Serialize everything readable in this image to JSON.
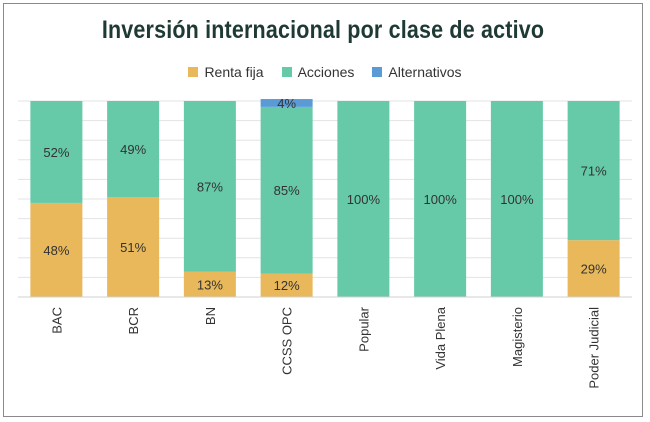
{
  "chart_data": {
    "type": "bar",
    "stacked": true,
    "title": "Inversión internacional por clase de activo",
    "categories": [
      "BAC",
      "BCR",
      "BN",
      "CCSS OPC",
      "Popular",
      "Vida Plena",
      "Magisterio",
      "Poder Judicial"
    ],
    "series": [
      {
        "name": "Renta fija",
        "color": "#e9b85a",
        "values": [
          48,
          51,
          13,
          12,
          0,
          0,
          0,
          29
        ]
      },
      {
        "name": "Acciones",
        "color": "#66c9a8",
        "values": [
          52,
          49,
          87,
          85,
          100,
          100,
          100,
          71
        ]
      },
      {
        "name": "Alternativos",
        "color": "#5a9bd5",
        "values": [
          0,
          0,
          0,
          4,
          0,
          0,
          0,
          0
        ]
      }
    ],
    "data_labels": [
      [
        "48%",
        "51%",
        "13%",
        "12%",
        "",
        "",
        "",
        "29%"
      ],
      [
        "52%",
        "49%",
        "87%",
        "85%",
        "100%",
        "100%",
        "100%",
        "71%"
      ],
      [
        "",
        "",
        "",
        "4%",
        "",
        "",
        "",
        ""
      ]
    ],
    "ylim": [
      0,
      100
    ],
    "legend": "top",
    "grid": true
  }
}
